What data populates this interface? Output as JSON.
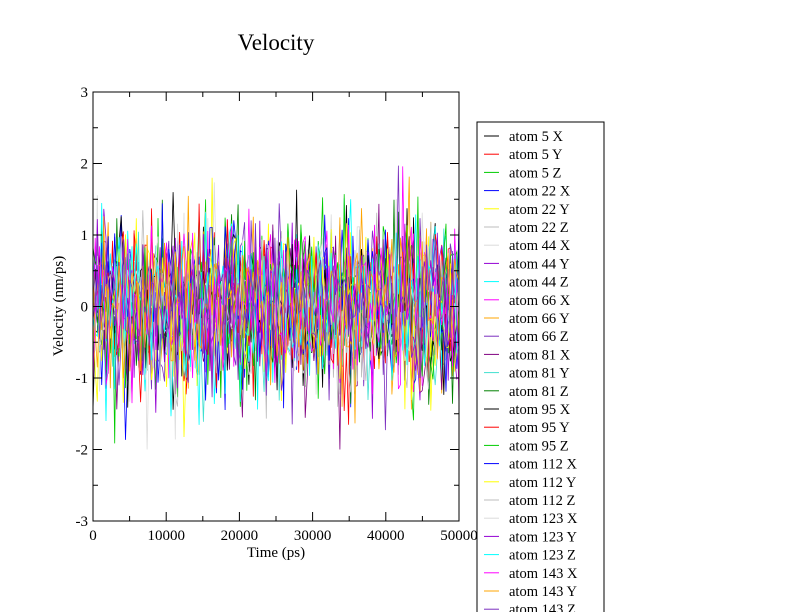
{
  "chart_data": {
    "type": "line",
    "title": "Velocity",
    "xlabel": "Time (ps)",
    "ylabel": "Velocity (nm/ps)",
    "xlim": [
      0,
      50000
    ],
    "ylim": [
      -3,
      3
    ],
    "x_ticks": [
      0,
      10000,
      20000,
      30000,
      40000,
      50000
    ],
    "x_tick_labels": [
      "0",
      "10000",
      "20000",
      "30000",
      "40000",
      "50000"
    ],
    "y_ticks": [
      -3,
      -2,
      -1,
      0,
      1,
      2,
      3
    ],
    "y_tick_labels": [
      "-3",
      "-2",
      "-1",
      "0",
      "1",
      "2",
      "3"
    ],
    "grid": false,
    "legend_position": "right",
    "value_spread": 0.55,
    "peak_max": 2.15,
    "peak_min": -2.0,
    "series": [
      {
        "name": "atom 5 X",
        "color": "#000000"
      },
      {
        "name": "atom 5 Y",
        "color": "#ff0000"
      },
      {
        "name": "atom 5 Z",
        "color": "#00cc00"
      },
      {
        "name": "atom 22 X",
        "color": "#0000ff"
      },
      {
        "name": "atom 22 Y",
        "color": "#ffff00"
      },
      {
        "name": "atom 22 Z",
        "color": "#bcbcbc"
      },
      {
        "name": "atom 44 X",
        "color": "#dcdcdc"
      },
      {
        "name": "atom 44 Y",
        "color": "#9400d3"
      },
      {
        "name": "atom 44 Z",
        "color": "#00ffff"
      },
      {
        "name": "atom 66 X",
        "color": "#ff00ff"
      },
      {
        "name": "atom 66 Y",
        "color": "#ffa500"
      },
      {
        "name": "atom 66 Z",
        "color": "#7b2fbf"
      },
      {
        "name": "atom 81 X",
        "color": "#800080"
      },
      {
        "name": "atom 81 Y",
        "color": "#40e0d0"
      },
      {
        "name": "atom 81 Z",
        "color": "#008000"
      },
      {
        "name": "atom 95 X",
        "color": "#000000"
      },
      {
        "name": "atom 95 Y",
        "color": "#ff0000"
      },
      {
        "name": "atom 95 Z",
        "color": "#00cc00"
      },
      {
        "name": "atom 112 X",
        "color": "#0000ff"
      },
      {
        "name": "atom 112 Y",
        "color": "#ffff00"
      },
      {
        "name": "atom 112 Z",
        "color": "#bcbcbc"
      },
      {
        "name": "atom 123 X",
        "color": "#dcdcdc"
      },
      {
        "name": "atom 123 Y",
        "color": "#9400d3"
      },
      {
        "name": "atom 123 Z",
        "color": "#00ffff"
      },
      {
        "name": "atom 143 X",
        "color": "#ff00ff"
      },
      {
        "name": "atom 143 Y",
        "color": "#ffa500"
      },
      {
        "name": "atom 143 Z",
        "color": "#7b2fbf"
      }
    ]
  }
}
